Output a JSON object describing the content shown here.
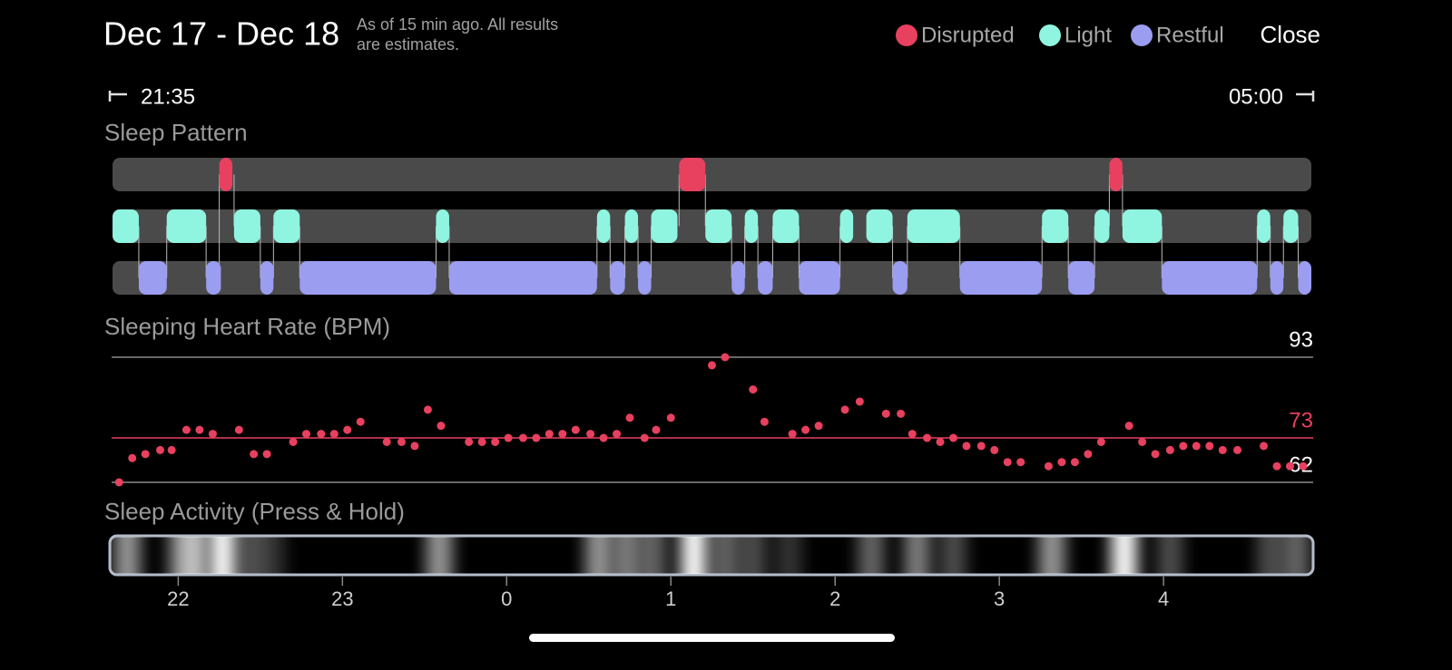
{
  "header": {
    "title": "Dec 17 - Dec 18",
    "note_lines": [
      "As of 15 min ago. All results",
      "are estimates."
    ],
    "legend": [
      {
        "name": "Disrupted",
        "color": "#e8405f"
      },
      {
        "name": "Light",
        "color": "#8ff5e0"
      },
      {
        "name": "Restful",
        "color": "#9a9df0"
      }
    ],
    "close": "Close"
  },
  "range": {
    "start": "21:35",
    "end": "05:00"
  },
  "x_axis": {
    "xlim": [
      21.6,
      28.9
    ],
    "xticks": [
      22,
      23,
      {
        "value": 24,
        "label": "0"
      },
      {
        "value": 25,
        "label": "1"
      },
      {
        "value": 26,
        "label": "2"
      },
      {
        "value": 27,
        "label": "3"
      },
      {
        "value": 28,
        "label": "4"
      }
    ]
  },
  "sleep_pattern": {
    "title": "Sleep Pattern",
    "segments": [
      {
        "stage": 1,
        "start": 21.6,
        "end": 21.76
      },
      {
        "stage": 2,
        "start": 21.76,
        "end": 21.93
      },
      {
        "stage": 1,
        "start": 21.93,
        "end": 22.17
      },
      {
        "stage": 2,
        "start": 22.17,
        "end": 22.26
      },
      {
        "stage": 0,
        "start": 22.25,
        "end": 22.33
      },
      {
        "stage": 1,
        "start": 22.34,
        "end": 22.5
      },
      {
        "stage": 2,
        "start": 22.5,
        "end": 22.58
      },
      {
        "stage": 1,
        "start": 22.58,
        "end": 22.74
      },
      {
        "stage": 2,
        "start": 22.74,
        "end": 23.57
      },
      {
        "stage": 1,
        "start": 23.57,
        "end": 23.65
      },
      {
        "stage": 2,
        "start": 23.65,
        "end": 24.55
      },
      {
        "stage": 1,
        "start": 24.55,
        "end": 24.63
      },
      {
        "stage": 2,
        "start": 24.63,
        "end": 24.72
      },
      {
        "stage": 1,
        "start": 24.72,
        "end": 24.8
      },
      {
        "stage": 2,
        "start": 24.8,
        "end": 24.88
      },
      {
        "stage": 1,
        "start": 24.88,
        "end": 25.04
      },
      {
        "stage": 0,
        "start": 25.05,
        "end": 25.21
      },
      {
        "stage": 1,
        "start": 25.21,
        "end": 25.37
      },
      {
        "stage": 2,
        "start": 25.37,
        "end": 25.45
      },
      {
        "stage": 1,
        "start": 25.45,
        "end": 25.53
      },
      {
        "stage": 2,
        "start": 25.53,
        "end": 25.62
      },
      {
        "stage": 1,
        "start": 25.62,
        "end": 25.78
      },
      {
        "stage": 2,
        "start": 25.78,
        "end": 26.03
      },
      {
        "stage": 1,
        "start": 26.03,
        "end": 26.11
      },
      {
        "stage": 1,
        "start": 26.19,
        "end": 26.35
      },
      {
        "stage": 2,
        "start": 26.35,
        "end": 26.44
      },
      {
        "stage": 1,
        "start": 26.44,
        "end": 26.76
      },
      {
        "stage": 2,
        "start": 26.76,
        "end": 27.26
      },
      {
        "stage": 1,
        "start": 27.26,
        "end": 27.42
      },
      {
        "stage": 2,
        "start": 27.42,
        "end": 27.58
      },
      {
        "stage": 1,
        "start": 27.58,
        "end": 27.67
      },
      {
        "stage": 0,
        "start": 27.67,
        "end": 27.75
      },
      {
        "stage": 1,
        "start": 27.75,
        "end": 27.99
      },
      {
        "stage": 2,
        "start": 27.99,
        "end": 28.57
      },
      {
        "stage": 1,
        "start": 28.57,
        "end": 28.65
      },
      {
        "stage": 2,
        "start": 28.65,
        "end": 28.73
      },
      {
        "stage": 1,
        "start": 28.73,
        "end": 28.82
      },
      {
        "stage": 2,
        "start": 28.82,
        "end": 28.9
      }
    ]
  },
  "heart_rate": {
    "title": "Sleeping Heart Rate (BPM)",
    "color": "#e8405f",
    "ylim": [
      62,
      93
    ],
    "yticks": [
      62,
      73,
      93
    ],
    "tick_colors": [
      "#8a8a8a",
      "#e8405f",
      "#8a8a8a"
    ],
    "tick_label_colors": [
      "#ffffff",
      "#e8405f",
      "#ffffff"
    ],
    "x": [
      21.64,
      21.72,
      21.8,
      21.89,
      21.96,
      22.05,
      22.13,
      22.21,
      22.37,
      22.46,
      22.54,
      22.7,
      22.78,
      22.87,
      22.95,
      23.03,
      23.11,
      23.27,
      23.36,
      23.44,
      23.52,
      23.6,
      23.77,
      23.85,
      23.93,
      24.01,
      24.1,
      24.18,
      24.26,
      24.34,
      24.42,
      24.51,
      24.59,
      24.67,
      24.75,
      24.84,
      24.91,
      25.0,
      25.25,
      25.33,
      25.5,
      25.57,
      25.74,
      25.82,
      25.9,
      26.06,
      26.15,
      26.31,
      26.4,
      26.47,
      26.56,
      26.64,
      26.72,
      26.8,
      26.89,
      26.97,
      27.05,
      27.13,
      27.3,
      27.38,
      27.46,
      27.54,
      27.62,
      27.79,
      27.87,
      27.95,
      28.04,
      28.12,
      28.2,
      28.28,
      28.36,
      28.45,
      28.61,
      28.69,
      28.77,
      28.85
    ],
    "values": [
      62,
      68,
      69,
      70,
      70,
      75,
      75,
      74,
      75,
      69,
      69,
      72,
      74,
      74,
      74,
      75,
      77,
      72,
      72,
      71,
      80,
      76,
      72,
      72,
      72,
      73,
      73,
      73,
      74,
      74,
      75,
      74,
      73,
      74,
      78,
      73,
      75,
      78,
      91,
      93,
      85,
      77,
      74,
      75,
      76,
      80,
      82,
      79,
      79,
      74,
      73,
      72,
      73,
      71,
      71,
      70,
      67,
      67,
      66,
      67,
      67,
      69,
      72,
      76,
      72,
      69,
      70,
      71,
      71,
      71,
      70,
      70,
      71,
      66,
      66,
      66
    ]
  },
  "sleep_activity": {
    "title": "Sleep Activity (Press & Hold)",
    "x": [
      21.69,
      22.02,
      22.1,
      22.27,
      22.44,
      22.57,
      23.59,
      24.56,
      24.73,
      24.89,
      25.14,
      25.33,
      25.5,
      25.72,
      26.22,
      26.5,
      26.72,
      27.32,
      27.76,
      28.04,
      28.65,
      28.81
    ],
    "values": [
      0.6,
      0.5,
      0.7,
      1.0,
      0.3,
      0.2,
      0.6,
      0.6,
      0.5,
      0.4,
      1.0,
      0.4,
      0.3,
      0.2,
      0.4,
      0.5,
      0.3,
      0.6,
      1.0,
      0.3,
      0.3,
      0.4
    ]
  }
}
